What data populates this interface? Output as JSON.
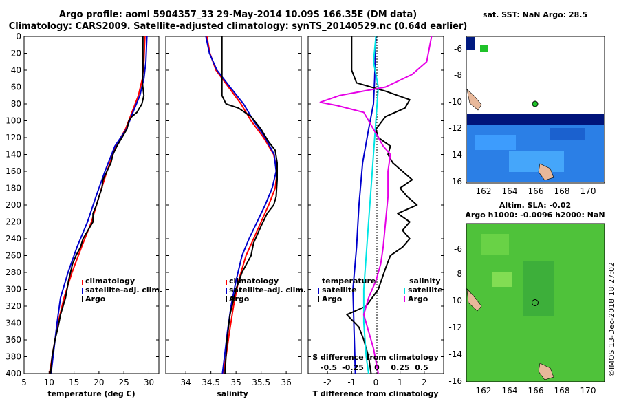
{
  "title_line1": "Argo profile: aoml 5904357_33 29-May-2014 10.09S 166.35E (DM data)",
  "title_line2": "Climatology: CARS2009. Satellite-adjusted climatology: synTS_20140529.nc (0.64d earlier)",
  "watermark": "©IMOS 13-Dec-2018 18:27:02",
  "colors": {
    "climatology": "#ff0000",
    "satellite": "#0000cc",
    "argo": "#000000",
    "salinity_sat": "#00e5e5",
    "salinity_argo": "#e600e6"
  },
  "chart_data": [
    {
      "id": "temperature",
      "type": "line",
      "xlabel": "temperature (deg C)",
      "xlim": [
        5,
        32
      ],
      "xticks": [
        5,
        10,
        15,
        20,
        25,
        30
      ],
      "ylim": [
        400,
        0
      ],
      "yticks": [
        0,
        20,
        40,
        60,
        80,
        100,
        120,
        140,
        160,
        180,
        200,
        220,
        240,
        260,
        280,
        300,
        320,
        340,
        360,
        380,
        400
      ],
      "legend": [
        "climatology",
        "satellite-adj. clim.",
        "Argo"
      ],
      "series": [
        {
          "name": "climatology",
          "color": "#ff0000",
          "points": [
            [
              29.2,
              0
            ],
            [
              29.0,
              30
            ],
            [
              28.7,
              50
            ],
            [
              27.9,
              70
            ],
            [
              26.6,
              90
            ],
            [
              25.3,
              110
            ],
            [
              23.4,
              130
            ],
            [
              21.6,
              160
            ],
            [
              20.0,
              190
            ],
            [
              18.5,
              220
            ],
            [
              16.5,
              250
            ],
            [
              14.6,
              280
            ],
            [
              13.0,
              310
            ],
            [
              11.8,
              340
            ],
            [
              10.9,
              370
            ],
            [
              10.1,
              400
            ]
          ]
        },
        {
          "name": "satellite-adj. clim.",
          "color": "#0000cc",
          "points": [
            [
              29.6,
              0
            ],
            [
              29.4,
              30
            ],
            [
              29.0,
              50
            ],
            [
              28.2,
              70
            ],
            [
              26.8,
              90
            ],
            [
              25.5,
              110
            ],
            [
              23.2,
              130
            ],
            [
              21.2,
              160
            ],
            [
              19.4,
              190
            ],
            [
              17.7,
              220
            ],
            [
              15.6,
              250
            ],
            [
              13.8,
              280
            ],
            [
              12.3,
              310
            ],
            [
              11.6,
              340
            ],
            [
              11.0,
              370
            ],
            [
              10.4,
              400
            ]
          ]
        },
        {
          "name": "Argo",
          "color": "#000000",
          "points": [
            [
              28.8,
              0
            ],
            [
              28.8,
              40
            ],
            [
              28.7,
              55
            ],
            [
              29.0,
              70
            ],
            [
              28.6,
              80
            ],
            [
              27.6,
              90
            ],
            [
              26.6,
              95
            ],
            [
              26.0,
              100
            ],
            [
              25.6,
              110
            ],
            [
              24.6,
              120
            ],
            [
              23.6,
              130
            ],
            [
              22.8,
              140
            ],
            [
              22.4,
              150
            ],
            [
              21.6,
              160
            ],
            [
              20.8,
              170
            ],
            [
              20.6,
              180
            ],
            [
              20.0,
              190
            ],
            [
              19.5,
              200
            ],
            [
              18.8,
              210
            ],
            [
              18.8,
              220
            ],
            [
              17.8,
              230
            ],
            [
              16.8,
              240
            ],
            [
              16.3,
              250
            ],
            [
              15.4,
              260
            ],
            [
              14.7,
              270
            ],
            [
              13.9,
              290
            ],
            [
              13.3,
              310
            ],
            [
              12.3,
              330
            ],
            [
              11.8,
              345
            ],
            [
              11.2,
              360
            ],
            [
              10.6,
              380
            ],
            [
              10.3,
              400
            ]
          ]
        }
      ]
    },
    {
      "id": "salinity",
      "type": "line",
      "xlabel": "salinity",
      "xlim": [
        33.6,
        36.3
      ],
      "xticks": [
        34,
        34.5,
        35,
        35.5,
        36
      ],
      "ylim": [
        400,
        0
      ],
      "legend": [
        "climatology",
        "satellite-adj. clim.",
        "Argo"
      ],
      "series": [
        {
          "name": "climatology",
          "color": "#ff0000",
          "points": [
            [
              34.42,
              0
            ],
            [
              34.48,
              20
            ],
            [
              34.6,
              40
            ],
            [
              34.85,
              60
            ],
            [
              35.1,
              80
            ],
            [
              35.3,
              100
            ],
            [
              35.55,
              120
            ],
            [
              35.75,
              140
            ],
            [
              35.82,
              160
            ],
            [
              35.78,
              180
            ],
            [
              35.65,
              200
            ],
            [
              35.5,
              220
            ],
            [
              35.35,
              240
            ],
            [
              35.2,
              260
            ],
            [
              35.05,
              290
            ],
            [
              34.95,
              320
            ],
            [
              34.87,
              350
            ],
            [
              34.8,
              380
            ],
            [
              34.75,
              400
            ]
          ]
        },
        {
          "name": "satellite-adj. clim.",
          "color": "#0000cc",
          "points": [
            [
              34.4,
              0
            ],
            [
              34.47,
              20
            ],
            [
              34.62,
              40
            ],
            [
              34.88,
              60
            ],
            [
              35.15,
              80
            ],
            [
              35.35,
              100
            ],
            [
              35.58,
              120
            ],
            [
              35.76,
              140
            ],
            [
              35.8,
              160
            ],
            [
              35.72,
              180
            ],
            [
              35.58,
              200
            ],
            [
              35.42,
              220
            ],
            [
              35.26,
              240
            ],
            [
              35.12,
              260
            ],
            [
              35.0,
              290
            ],
            [
              34.9,
              320
            ],
            [
              34.83,
              350
            ],
            [
              34.77,
              380
            ],
            [
              34.73,
              400
            ]
          ]
        },
        {
          "name": "Argo",
          "color": "#000000",
          "points": [
            [
              34.72,
              0
            ],
            [
              34.72,
              70
            ],
            [
              34.8,
              80
            ],
            [
              35.05,
              85
            ],
            [
              35.3,
              95
            ],
            [
              35.5,
              110
            ],
            [
              35.65,
              125
            ],
            [
              35.78,
              135
            ],
            [
              35.82,
              150
            ],
            [
              35.82,
              170
            ],
            [
              35.8,
              190
            ],
            [
              35.75,
              200
            ],
            [
              35.62,
              210
            ],
            [
              35.5,
              225
            ],
            [
              35.35,
              245
            ],
            [
              35.3,
              260
            ],
            [
              35.12,
              280
            ],
            [
              35.0,
              300
            ],
            [
              34.88,
              330
            ],
            [
              34.82,
              360
            ],
            [
              34.78,
              400
            ]
          ]
        }
      ]
    },
    {
      "id": "differences",
      "type": "line",
      "xlabel": "T difference from climatology",
      "xlabel_top": "S difference from climatology",
      "xlim": [
        -2.8,
        2.8
      ],
      "xticks": [
        -2,
        -1,
        0,
        1,
        2
      ],
      "xticks_top": [
        "-0.5",
        "-0.25",
        "0",
        "0.25",
        "0.5"
      ],
      "ylim": [
        400,
        0
      ],
      "legend_groups": [
        {
          "title": "temperature",
          "items": [
            "satellite",
            "Argo"
          ]
        },
        {
          "title": "salinity",
          "items": [
            "satellite",
            "Argo"
          ]
        }
      ],
      "series": [
        {
          "name": "temperature satellite",
          "color": "#0000cc",
          "points": [
            [
              0.0,
              0
            ],
            [
              -0.05,
              50
            ],
            [
              -0.1,
              80
            ],
            [
              -0.3,
              110
            ],
            [
              -0.55,
              150
            ],
            [
              -0.7,
              200
            ],
            [
              -0.8,
              250
            ],
            [
              -0.95,
              300
            ],
            [
              -0.9,
              350
            ],
            [
              -0.85,
              400
            ]
          ]
        },
        {
          "name": "temperature Argo",
          "color": "#000000",
          "points": [
            [
              -1.0,
              0
            ],
            [
              -1.0,
              40
            ],
            [
              -0.8,
              55
            ],
            [
              0.4,
              65
            ],
            [
              1.4,
              75
            ],
            [
              1.2,
              85
            ],
            [
              0.4,
              95
            ],
            [
              0.0,
              110
            ],
            [
              0.1,
              120
            ],
            [
              0.6,
              130
            ],
            [
              0.5,
              140
            ],
            [
              0.7,
              150
            ],
            [
              1.1,
              160
            ],
            [
              1.5,
              170
            ],
            [
              1.0,
              180
            ],
            [
              1.3,
              190
            ],
            [
              1.7,
              200
            ],
            [
              0.9,
              210
            ],
            [
              1.4,
              220
            ],
            [
              1.1,
              230
            ],
            [
              1.4,
              240
            ],
            [
              1.1,
              250
            ],
            [
              0.6,
              260
            ],
            [
              0.4,
              275
            ],
            [
              0.1,
              300
            ],
            [
              -0.4,
              320
            ],
            [
              -1.2,
              330
            ],
            [
              -0.7,
              345
            ],
            [
              -0.5,
              360
            ],
            [
              -0.3,
              380
            ],
            [
              -0.2,
              400
            ]
          ]
        },
        {
          "name": "salinity satellite",
          "color": "#00e5e5",
          "points": [
            [
              0.0,
              0
            ],
            [
              -0.1,
              30
            ],
            [
              0.1,
              60
            ],
            [
              0.0,
              100
            ],
            [
              -0.1,
              140
            ],
            [
              -0.2,
              180
            ],
            [
              -0.3,
              220
            ],
            [
              -0.4,
              260
            ],
            [
              -0.5,
              300
            ],
            [
              -0.5,
              340
            ],
            [
              -0.4,
              380
            ],
            [
              -0.3,
              400
            ]
          ]
        },
        {
          "name": "salinity Argo",
          "color": "#e600e6",
          "points": [
            [
              2.3,
              0
            ],
            [
              2.1,
              30
            ],
            [
              1.5,
              45
            ],
            [
              0.4,
              60
            ],
            [
              -1.5,
              70
            ],
            [
              -2.3,
              78
            ],
            [
              -1.6,
              82
            ],
            [
              -0.5,
              90
            ],
            [
              -0.1,
              110
            ],
            [
              0.3,
              130
            ],
            [
              0.6,
              140
            ],
            [
              0.5,
              160
            ],
            [
              0.5,
              190
            ],
            [
              0.4,
              220
            ],
            [
              0.3,
              250
            ],
            [
              0.2,
              270
            ],
            [
              0.0,
              290
            ],
            [
              -0.3,
              310
            ],
            [
              -0.5,
              330
            ],
            [
              -0.3,
              350
            ],
            [
              -0.1,
              370
            ],
            [
              0.1,
              400
            ]
          ]
        }
      ]
    }
  ],
  "map_top": {
    "title": "sat. SST: NaN Argo: 28.5",
    "xticks": [
      "162",
      "164",
      "166",
      "168",
      "170"
    ],
    "yticks": [
      "-6",
      "-8",
      "-10",
      "-12",
      "-14",
      "-16"
    ]
  },
  "map_bottom": {
    "title1": "Altim. SLA: -0.02",
    "title2": "Argo h1000: -0.0096 h2000: NaN",
    "xticks": [
      "162",
      "164",
      "166",
      "168",
      "170"
    ],
    "yticks": [
      "-6",
      "-8",
      "-10",
      "-12",
      "-14",
      "-16"
    ]
  }
}
